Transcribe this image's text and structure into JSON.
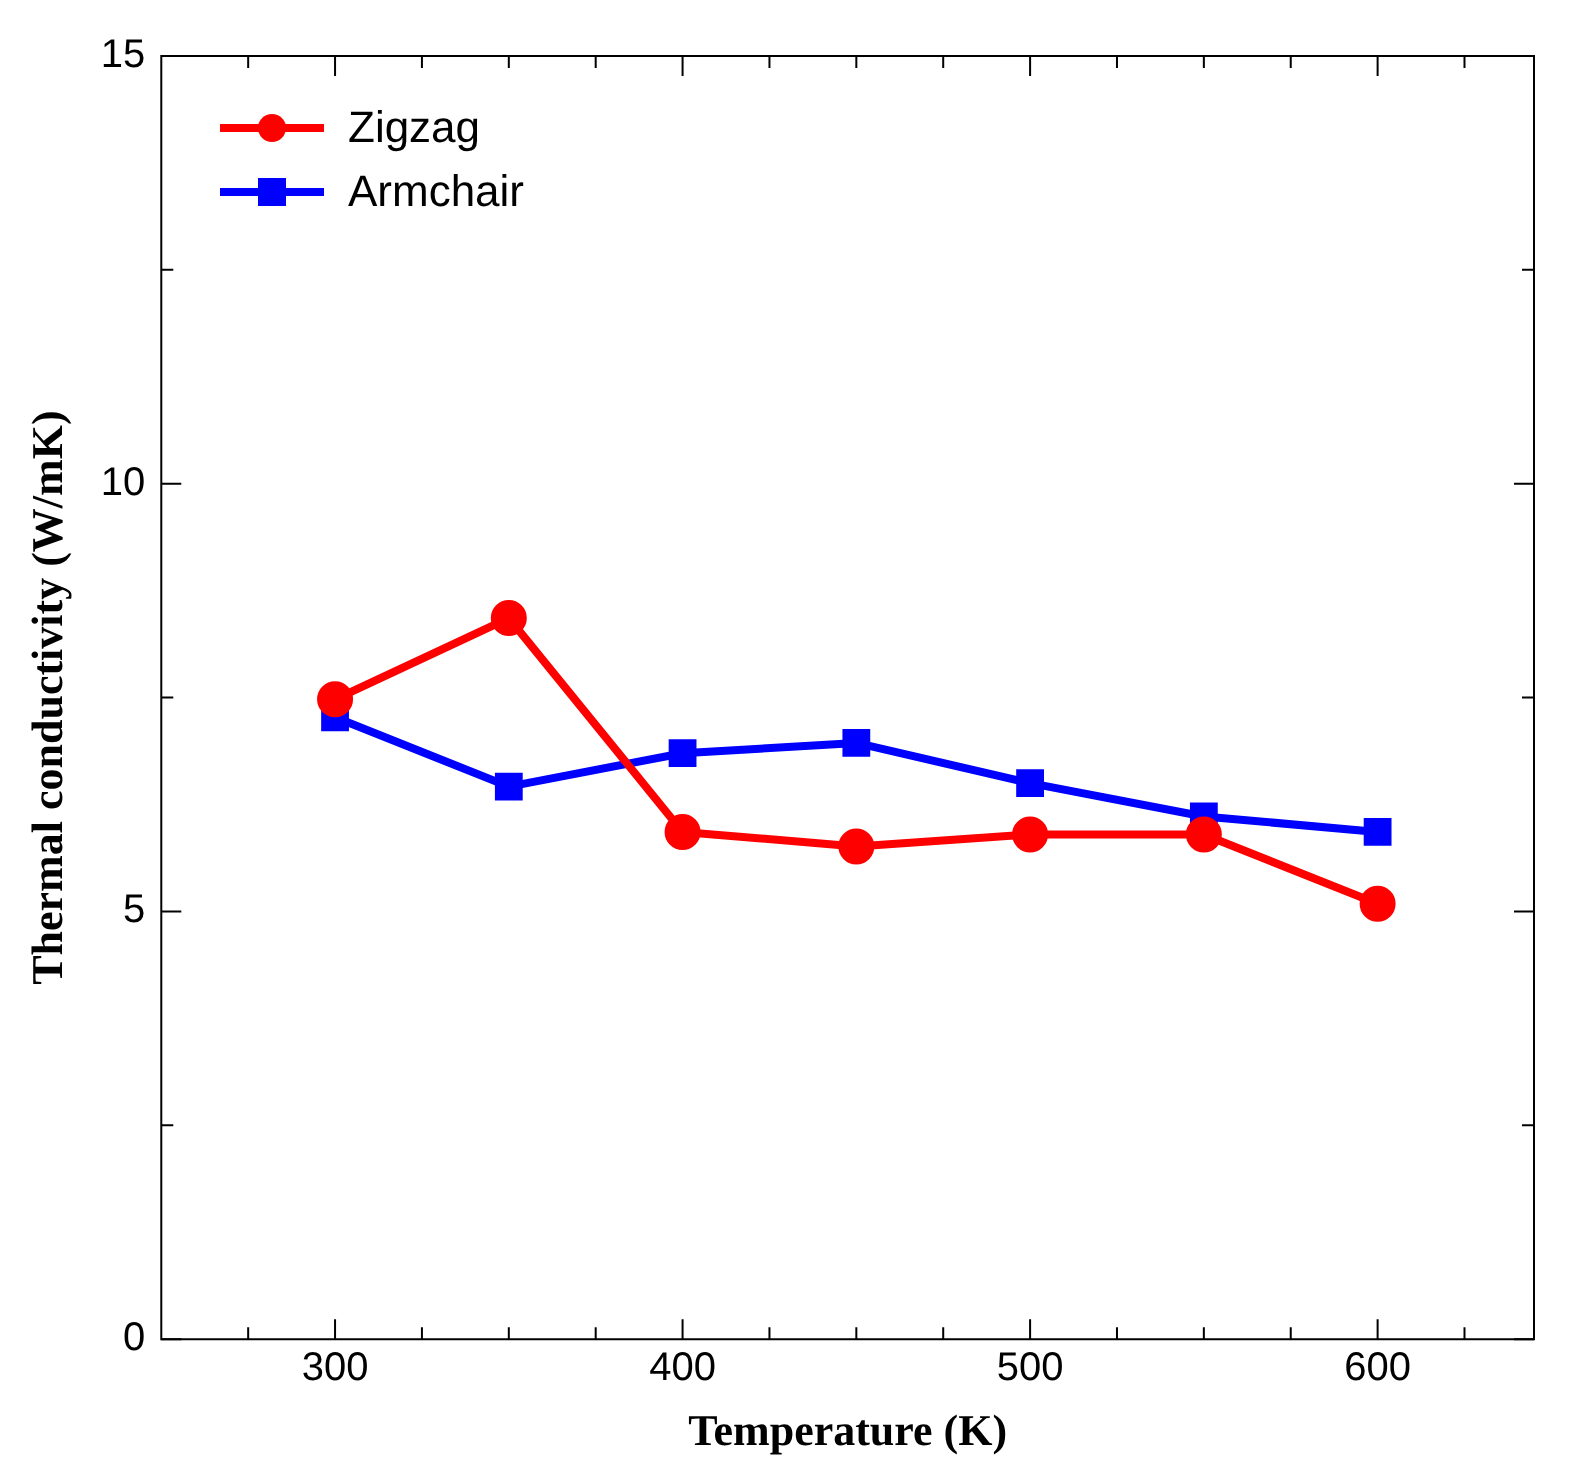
{
  "chart_data": {
    "type": "line",
    "xlabel": "Temperature (K)",
    "ylabel": "Thermal conductivity (W/mK)",
    "x": [
      300,
      350,
      400,
      450,
      500,
      550,
      600
    ],
    "series": [
      {
        "name": "Zigzag",
        "color": "#ff0000",
        "marker": "circle",
        "values": [
          7.48,
          8.43,
          5.93,
          5.76,
          5.9,
          5.9,
          5.09
        ]
      },
      {
        "name": "Armchair",
        "color": "#0000ff",
        "marker": "square",
        "values": [
          7.27,
          6.46,
          6.85,
          6.97,
          6.5,
          6.11,
          5.93
        ]
      }
    ],
    "xlim": [
      250,
      645
    ],
    "xticks": [
      {
        "value": 275,
        "label": null
      },
      300,
      {
        "value": 325,
        "label": null
      },
      {
        "value": 350,
        "label": null
      },
      {
        "value": 375,
        "label": null
      },
      400,
      {
        "value": 425,
        "label": null
      },
      {
        "value": 450,
        "label": null
      },
      {
        "value": 475,
        "label": null
      },
      500,
      {
        "value": 525,
        "label": null
      },
      {
        "value": 550,
        "label": null
      },
      {
        "value": 575,
        "label": null
      },
      600,
      {
        "value": 625,
        "label": null
      }
    ],
    "ylim": [
      0,
      15
    ],
    "yticks": [
      0,
      {
        "value": 2.5,
        "label": null
      },
      5,
      {
        "value": 7.5,
        "label": null
      },
      10,
      {
        "value": 12.5,
        "label": null
      },
      15
    ],
    "grid": false,
    "legend": "top left",
    "line_style": "solid"
  }
}
